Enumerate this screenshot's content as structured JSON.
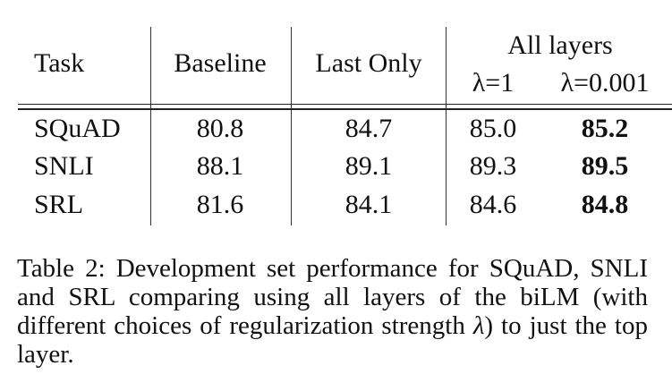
{
  "table": {
    "headers": {
      "task": "Task",
      "baseline": "Baseline",
      "last_only": "Last Only",
      "all_layers": "All layers",
      "lambda_1": "λ=1",
      "lambda_0001": "λ=0.001"
    },
    "rows": [
      {
        "task": "SQuAD",
        "baseline": "80.8",
        "last_only": "84.7",
        "lambda_1": "85.0",
        "lambda_0001": "85.2"
      },
      {
        "task": "SNLI",
        "baseline": "88.1",
        "last_only": "89.1",
        "lambda_1": "89.3",
        "lambda_0001": "89.5"
      },
      {
        "task": "SRL",
        "baseline": "81.6",
        "last_only": "84.1",
        "lambda_1": "84.6",
        "lambda_0001": "84.8"
      }
    ]
  },
  "caption": {
    "lead": "Table 2:  Development set performance for SQuAD, SNLI and SRL comparing using all layers of the biLM (with different choices of regularization strength ",
    "symbol": "λ",
    "tail": ") to just the top layer."
  }
}
